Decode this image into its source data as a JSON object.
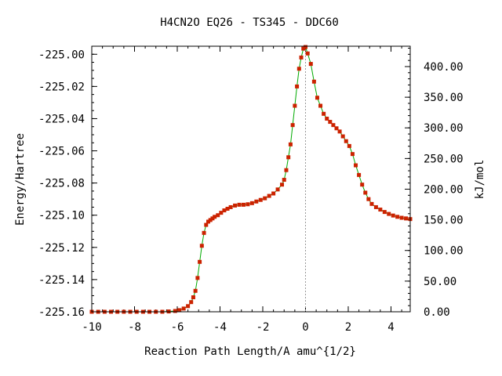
{
  "chart_data": {
    "type": "line",
    "title": "H4CN2O   EQ26 - TS345 - DDC60",
    "xlabel": "Reaction Path Length/A amu^{1/2}",
    "ylabel": "Energy/Hartree",
    "y2label": "kJ/mol",
    "xlim": [
      -10,
      4.9
    ],
    "ylim": [
      -225.16,
      -224.995
    ],
    "y2lim": [
      0,
      433.2
    ],
    "xticks": [
      -10,
      -8,
      -6,
      -4,
      -2,
      0,
      2,
      4
    ],
    "xtick_labels": [
      "-10",
      "-8",
      "-6",
      "-4",
      "-2",
      "0",
      "2",
      "4"
    ],
    "yticks": [
      -225.16,
      -225.14,
      -225.12,
      -225.1,
      -225.08,
      -225.06,
      -225.04,
      -225.02,
      -225.0
    ],
    "ytick_labels": [
      "-225.16",
      "-225.14",
      "-225.12",
      "-225.10",
      "-225.08",
      "-225.06",
      "-225.04",
      "-225.02",
      "-225.00"
    ],
    "y2ticks": [
      0,
      50,
      100,
      150,
      200,
      250,
      300,
      350,
      400
    ],
    "y2tick_labels": [
      "0.00",
      "50.00",
      "100.00",
      "150.00",
      "200.00",
      "250.00",
      "300.00",
      "350.00",
      "400.00"
    ],
    "ts_marker_x": 0,
    "grid": false,
    "colors": {
      "line": "#00aa00",
      "marker": "#cc2200",
      "ts_line": "#999999",
      "frame": "#000000"
    },
    "series": [
      {
        "x": [
          -10,
          -9.7,
          -9.4,
          -9.1,
          -8.8,
          -8.5,
          -8.2,
          -7.9,
          -7.6,
          -7.3,
          -7.0,
          -6.7,
          -6.4,
          -6.1,
          -5.9,
          -5.7,
          -5.5,
          -5.35,
          -5.25,
          -5.15,
          -5.05,
          -4.95,
          -4.85,
          -4.75,
          -4.65,
          -4.55,
          -4.45,
          -4.35,
          -4.25,
          -4.1,
          -3.95,
          -3.8,
          -3.65,
          -3.5,
          -3.3,
          -3.1,
          -2.9,
          -2.7,
          -2.5,
          -2.3,
          -2.1,
          -1.9,
          -1.7,
          -1.5,
          -1.3,
          -1.1,
          -1.0,
          -0.9,
          -0.8,
          -0.7,
          -0.6,
          -0.5,
          -0.4,
          -0.3,
          -0.2,
          -0.1,
          0.0,
          0.1,
          0.25,
          0.4,
          0.55,
          0.7,
          0.85,
          1.0,
          1.15,
          1.3,
          1.45,
          1.6,
          1.75,
          1.9,
          2.05,
          2.2,
          2.35,
          2.5,
          2.65,
          2.8,
          2.95,
          3.1,
          3.3,
          3.5,
          3.7,
          3.9,
          4.1,
          4.3,
          4.5,
          4.7,
          4.9
        ],
        "y": [
          -225.16,
          -225.16,
          -225.16,
          -225.16,
          -225.16,
          -225.16,
          -225.16,
          -225.16,
          -225.16,
          -225.16,
          -225.16,
          -225.16,
          -225.1598,
          -225.1595,
          -225.159,
          -225.158,
          -225.1565,
          -225.154,
          -225.151,
          -225.147,
          -225.139,
          -225.129,
          -225.119,
          -225.111,
          -225.106,
          -225.104,
          -225.103,
          -225.102,
          -225.101,
          -225.1,
          -225.0985,
          -225.097,
          -225.096,
          -225.095,
          -225.094,
          -225.0935,
          -225.0935,
          -225.0932,
          -225.0925,
          -225.0915,
          -225.0905,
          -225.0895,
          -225.088,
          -225.0865,
          -225.084,
          -225.081,
          -225.078,
          -225.072,
          -225.064,
          -225.056,
          -225.044,
          -225.032,
          -225.02,
          -225.009,
          -225.002,
          -224.9965,
          -224.9955,
          -224.9995,
          -225.006,
          -225.017,
          -225.027,
          -225.032,
          -225.037,
          -225.04,
          -225.042,
          -225.044,
          -225.046,
          -225.048,
          -225.051,
          -225.054,
          -225.057,
          -225.062,
          -225.069,
          -225.075,
          -225.081,
          -225.086,
          -225.09,
          -225.093,
          -225.095,
          -225.0965,
          -225.098,
          -225.0992,
          -225.1002,
          -225.101,
          -225.1016,
          -225.102,
          -225.1024
        ]
      }
    ]
  }
}
